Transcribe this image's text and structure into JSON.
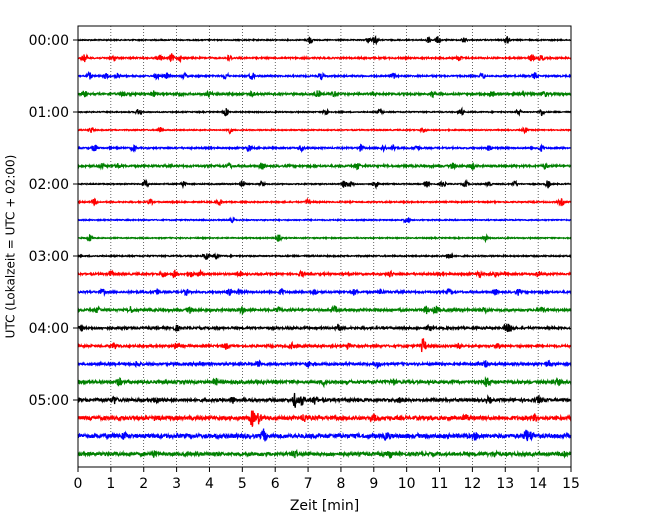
{
  "chart_data": {
    "type": "line",
    "title": "",
    "xlabel": "Zeit  [min]",
    "ylabel": "UTC (Lokalzeit = UTC + 02:00)",
    "xlim": [
      0,
      15
    ],
    "x_ticks": [
      0,
      1,
      2,
      3,
      4,
      5,
      6,
      7,
      8,
      9,
      10,
      11,
      12,
      13,
      14,
      15
    ],
    "x_tick_labels": [
      "0",
      "1",
      "2",
      "3",
      "4",
      "5",
      "6",
      "7",
      "8",
      "9",
      "10",
      "11",
      "12",
      "13",
      "14",
      "15"
    ],
    "y_tick_labels": [
      "00:00",
      "01:00",
      "02:00",
      "03:00",
      "04:00",
      "05:00"
    ],
    "y_tick_rows": [
      0,
      4,
      8,
      12,
      16,
      20
    ],
    "vertical_grid": true,
    "grid_style": "dotted",
    "trace_colors": [
      "#000000",
      "#ff0000",
      "#0000ff",
      "#008000"
    ],
    "traces": [
      {
        "start": "00:00",
        "noise": 0.5,
        "events": [
          [
            7.05,
            4
          ],
          [
            8.85,
            3.5
          ],
          [
            9.05,
            4
          ],
          [
            10.65,
            3
          ],
          [
            10.95,
            3.5
          ],
          [
            11.75,
            2.5
          ],
          [
            13.05,
            4
          ]
        ]
      },
      {
        "start": "00:15",
        "noise": 0.7,
        "events": [
          [
            0.2,
            4
          ],
          [
            1.1,
            3
          ],
          [
            2.5,
            3
          ],
          [
            2.85,
            4
          ],
          [
            3.1,
            3
          ],
          [
            4.6,
            3
          ],
          [
            11.6,
            3
          ],
          [
            13.8,
            3.5
          ],
          [
            14.1,
            3
          ]
        ]
      },
      {
        "start": "00:30",
        "noise": 0.7,
        "events": [
          [
            0.35,
            3.5
          ],
          [
            0.85,
            3
          ],
          [
            1.2,
            3
          ],
          [
            2.4,
            3
          ],
          [
            2.7,
            3
          ],
          [
            3.25,
            3
          ],
          [
            4.5,
            3
          ],
          [
            5.3,
            3.5
          ],
          [
            7.4,
            3.5
          ],
          [
            9.6,
            3
          ],
          [
            12.3,
            3
          ],
          [
            13.9,
            3.5
          ]
        ]
      },
      {
        "start": "00:45",
        "noise": 0.9,
        "events": [
          [
            0.2,
            3.5
          ],
          [
            1.4,
            3
          ],
          [
            2.3,
            3
          ],
          [
            3.1,
            3
          ],
          [
            4.0,
            3
          ],
          [
            5.3,
            3
          ],
          [
            7.3,
            3.5
          ],
          [
            7.8,
            3
          ],
          [
            10.8,
            3
          ],
          [
            12.6,
            3
          ],
          [
            13.5,
            3
          ],
          [
            14.2,
            3
          ]
        ]
      },
      {
        "start": "01:00",
        "noise": 0.5,
        "events": [
          [
            1.85,
            4
          ],
          [
            4.5,
            4
          ],
          [
            7.55,
            3
          ],
          [
            9.2,
            3.5
          ],
          [
            11.65,
            4
          ],
          [
            13.4,
            3
          ],
          [
            14.1,
            4
          ]
        ]
      },
      {
        "start": "01:15",
        "noise": 0.5,
        "events": [
          [
            0.4,
            3
          ],
          [
            2.5,
            3
          ],
          [
            4.6,
            3.5
          ],
          [
            10.5,
            3
          ],
          [
            13.6,
            3
          ]
        ]
      },
      {
        "start": "01:30",
        "noise": 0.7,
        "events": [
          [
            0.5,
            4
          ],
          [
            1.7,
            3
          ],
          [
            5.2,
            3.5
          ],
          [
            6.8,
            3
          ],
          [
            8.6,
            3.5
          ],
          [
            9.3,
            3
          ],
          [
            9.6,
            3.5
          ],
          [
            10.3,
            3
          ],
          [
            12.5,
            3
          ],
          [
            14.1,
            3
          ]
        ]
      },
      {
        "start": "01:45",
        "noise": 0.9,
        "events": [
          [
            0.7,
            3
          ],
          [
            1.2,
            3
          ],
          [
            4.6,
            3
          ],
          [
            5.6,
            3.5
          ],
          [
            8.5,
            3.5
          ],
          [
            11.4,
            3
          ],
          [
            12.0,
            3
          ],
          [
            14.2,
            3
          ]
        ]
      },
      {
        "start": "02:00",
        "noise": 0.5,
        "events": [
          [
            2.05,
            4
          ],
          [
            3.2,
            3
          ],
          [
            5.0,
            4
          ],
          [
            5.6,
            3
          ],
          [
            8.1,
            4
          ],
          [
            8.3,
            3.5
          ],
          [
            9.05,
            4
          ],
          [
            10.6,
            3.5
          ],
          [
            11.1,
            3.5
          ],
          [
            11.8,
            3
          ],
          [
            12.5,
            4
          ],
          [
            13.3,
            3.5
          ],
          [
            14.3,
            4
          ]
        ]
      },
      {
        "start": "02:15",
        "noise": 0.6,
        "events": [
          [
            0.5,
            3
          ],
          [
            2.2,
            3
          ],
          [
            4.3,
            3.5
          ],
          [
            7.0,
            3
          ],
          [
            14.7,
            3.5
          ]
        ]
      },
      {
        "start": "02:30",
        "noise": 0.5,
        "events": [
          [
            4.7,
            3.5
          ],
          [
            10.0,
            4
          ]
        ]
      },
      {
        "start": "02:45",
        "noise": 0.5,
        "events": [
          [
            0.35,
            3.5
          ],
          [
            6.1,
            3.5
          ],
          [
            12.4,
            3
          ]
        ]
      },
      {
        "start": "03:00",
        "noise": 0.6,
        "events": [
          [
            3.9,
            4
          ],
          [
            4.2,
            3
          ],
          [
            11.3,
            4
          ]
        ]
      },
      {
        "start": "03:15",
        "noise": 0.9,
        "events": [
          [
            1.0,
            3
          ],
          [
            2.6,
            3.5
          ],
          [
            2.95,
            4
          ],
          [
            3.4,
            3.5
          ],
          [
            3.7,
            3.5
          ],
          [
            4.9,
            3
          ],
          [
            6.8,
            3
          ],
          [
            9.5,
            3
          ],
          [
            12.2,
            3
          ],
          [
            12.7,
            3
          ],
          [
            14.0,
            3
          ]
        ]
      },
      {
        "start": "03:30",
        "noise": 0.9,
        "events": [
          [
            0.75,
            3
          ],
          [
            2.4,
            3.5
          ],
          [
            3.3,
            3
          ],
          [
            4.6,
            3.5
          ],
          [
            4.9,
            3
          ],
          [
            6.2,
            3
          ],
          [
            7.2,
            3
          ],
          [
            8.4,
            3
          ],
          [
            9.2,
            3
          ],
          [
            11.3,
            3
          ],
          [
            12.7,
            3
          ],
          [
            13.4,
            3
          ]
        ]
      },
      {
        "start": "03:45",
        "noise": 1.1,
        "events": [
          [
            0.6,
            3
          ],
          [
            1.6,
            3
          ],
          [
            3.4,
            3
          ],
          [
            5.0,
            3
          ],
          [
            6.1,
            3
          ],
          [
            7.8,
            3.5
          ],
          [
            10.6,
            3.5
          ],
          [
            10.9,
            4
          ],
          [
            12.4,
            3
          ],
          [
            14.1,
            3
          ]
        ]
      },
      {
        "start": "04:00",
        "noise": 1.0,
        "events": [
          [
            0.1,
            3
          ],
          [
            3.0,
            3
          ],
          [
            7.9,
            3.5
          ],
          [
            10.7,
            3
          ],
          [
            13.05,
            6
          ],
          [
            13.2,
            4
          ]
        ]
      },
      {
        "start": "04:15",
        "noise": 1.0,
        "events": [
          [
            1.1,
            3
          ],
          [
            3.0,
            3
          ],
          [
            4.5,
            3
          ],
          [
            6.5,
            3
          ],
          [
            8.2,
            3
          ],
          [
            10.5,
            8
          ],
          [
            11.6,
            3
          ],
          [
            12.8,
            3
          ]
        ]
      },
      {
        "start": "04:30",
        "noise": 1.1,
        "events": [
          [
            1.8,
            3
          ],
          [
            3.7,
            3
          ],
          [
            5.5,
            3
          ],
          [
            7.0,
            3
          ],
          [
            9.1,
            3
          ],
          [
            12.4,
            3
          ],
          [
            14.3,
            3
          ]
        ]
      },
      {
        "start": "04:45",
        "noise": 1.4,
        "events": [
          [
            1.25,
            3.5
          ],
          [
            4.2,
            3
          ],
          [
            7.5,
            3.5
          ],
          [
            9.6,
            3
          ],
          [
            12.45,
            5
          ],
          [
            14.6,
            3
          ]
        ]
      },
      {
        "start": "05:00",
        "noise": 1.4,
        "events": [
          [
            1.1,
            4
          ],
          [
            2.4,
            3
          ],
          [
            4.7,
            3.5
          ],
          [
            6.6,
            7
          ],
          [
            6.8,
            5
          ],
          [
            7.2,
            4
          ],
          [
            9.8,
            3
          ],
          [
            12.5,
            3
          ],
          [
            14.0,
            3
          ]
        ]
      },
      {
        "start": "05:15",
        "noise": 1.8,
        "events": [
          [
            2.4,
            3.5
          ],
          [
            5.3,
            8
          ],
          [
            5.5,
            5
          ],
          [
            6.9,
            3.5
          ],
          [
            9.0,
            3
          ],
          [
            11.8,
            3
          ],
          [
            13.9,
            3
          ]
        ]
      },
      {
        "start": "05:30",
        "noise": 2.0,
        "events": [
          [
            1.4,
            3
          ],
          [
            5.65,
            6
          ],
          [
            9.4,
            3.5
          ],
          [
            12.1,
            3
          ],
          [
            13.65,
            6
          ],
          [
            13.8,
            4
          ]
        ]
      },
      {
        "start": "05:45",
        "noise": 1.6,
        "events": [
          [
            2.3,
            3
          ],
          [
            6.6,
            3
          ],
          [
            9.5,
            3
          ],
          [
            12.7,
            3
          ],
          [
            14.8,
            3
          ]
        ]
      }
    ]
  }
}
